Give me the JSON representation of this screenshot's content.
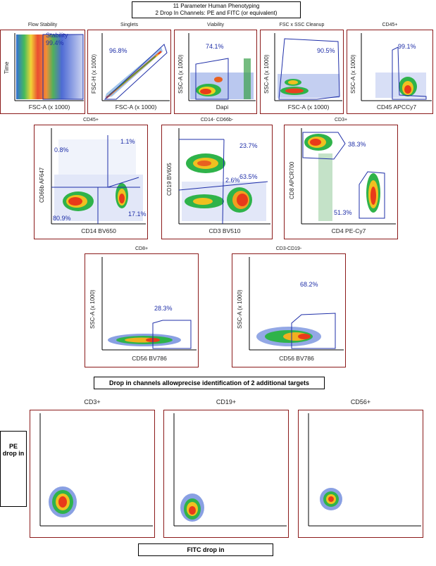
{
  "header": {
    "line1": "11 Parameter Human Phenotyping",
    "line2": "2 Drop In Channels: PE and FITC (or equivalent)"
  },
  "row1": [
    {
      "title": "Flow Stability",
      "ylabel": "Time",
      "xlabel": "FSC-A (x 1000)",
      "gate_label": "Stability",
      "pct": "99.4%"
    },
    {
      "title": "Singlets",
      "ylabel": "FSC-H (x 1000)",
      "xlabel": "FSC-A (x 1000)",
      "pct": "96.8%"
    },
    {
      "title": "Viability",
      "ylabel": "SSC-A (x 1000)",
      "xlabel": "Dapi",
      "pct": "74.1%"
    },
    {
      "title": "FSC x SSC Cleanup",
      "ylabel": "SSC-A (x 1000)",
      "xlabel": "FSC-A (x 1000)",
      "pct": "90.5%"
    },
    {
      "title": "CD45+",
      "ylabel": "SSC-A (x 1000)",
      "xlabel": "CD45 APCCy7",
      "pct": "99.1%"
    }
  ],
  "row2": [
    {
      "title": "CD45+",
      "ylabel": "CD66b AF647",
      "xlabel": "CD14 BV650",
      "pcts": [
        "0.8%",
        "1.1%",
        "80.9%",
        "17.1%"
      ]
    },
    {
      "title": "CD14- CD66b-",
      "ylabel": "CD19 BV605",
      "xlabel": "CD3 BV510",
      "pcts": [
        "23.7%",
        "2.6%",
        "63.5%"
      ]
    },
    {
      "title": "CD3+",
      "ylabel": "CD8 APCR700",
      "xlabel": "CD4 PE-Cy7",
      "pcts": [
        "38.3%",
        "51.3%"
      ]
    }
  ],
  "row3": [
    {
      "title": "CD8+",
      "ylabel": "SSC-A (x 1000)",
      "xlabel": "CD56 BV786",
      "pct": "28.3%"
    },
    {
      "title": "CD3-CD19-",
      "ylabel": "SSC-A (x 1000)",
      "xlabel": "CD56 BV786",
      "pct": "68.2%"
    }
  ],
  "note": "Drop in channels allowprecise identification of 2 additional targets",
  "drop": {
    "titles": [
      "CD3+",
      "CD19+",
      "CD56+"
    ],
    "pe_label_1": "PE",
    "pe_label_2": "drop in",
    "fitc_label": "FITC drop in"
  }
}
